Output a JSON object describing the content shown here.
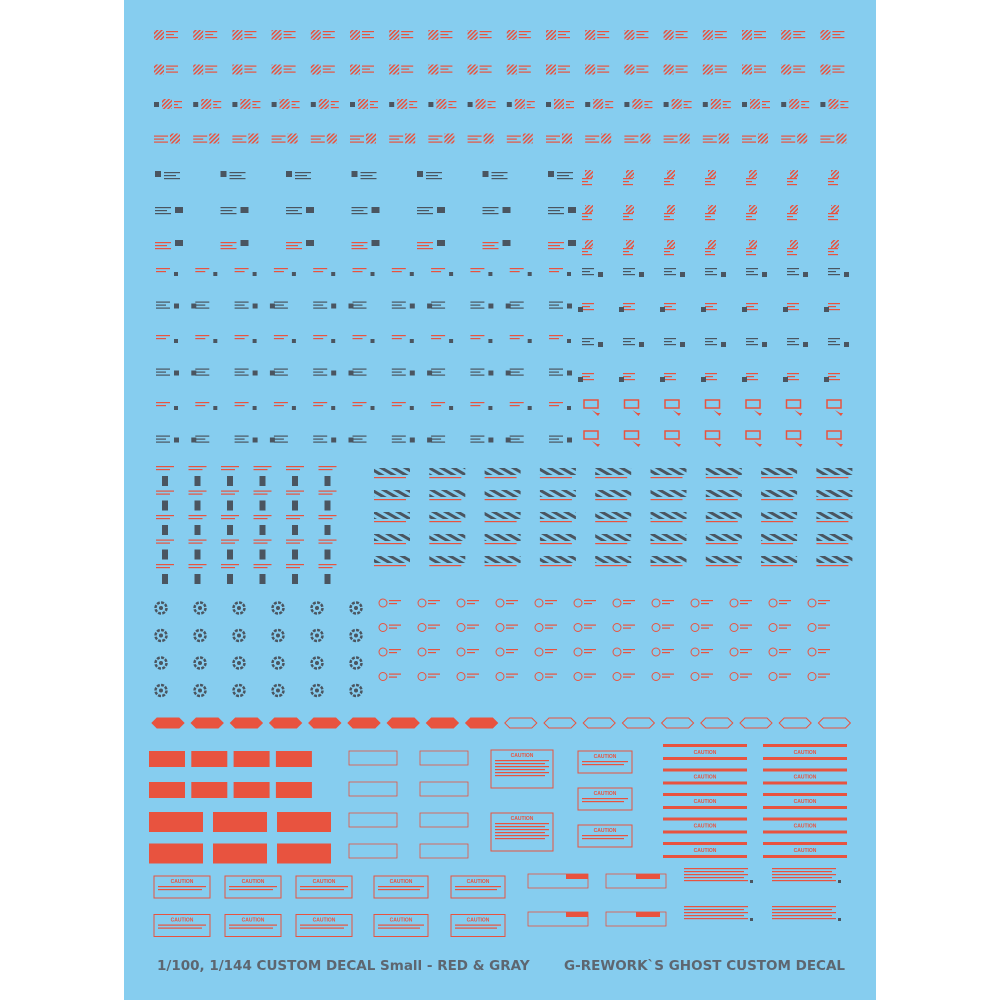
{
  "sheet": {
    "caution_label": "CAUTION"
  },
  "footer": {
    "left": "1/100, 1/144 CUSTOM DECAL Small - RED & GRAY",
    "right": "G-REWORK`S GHOST CUSTOM DECAL"
  }
}
